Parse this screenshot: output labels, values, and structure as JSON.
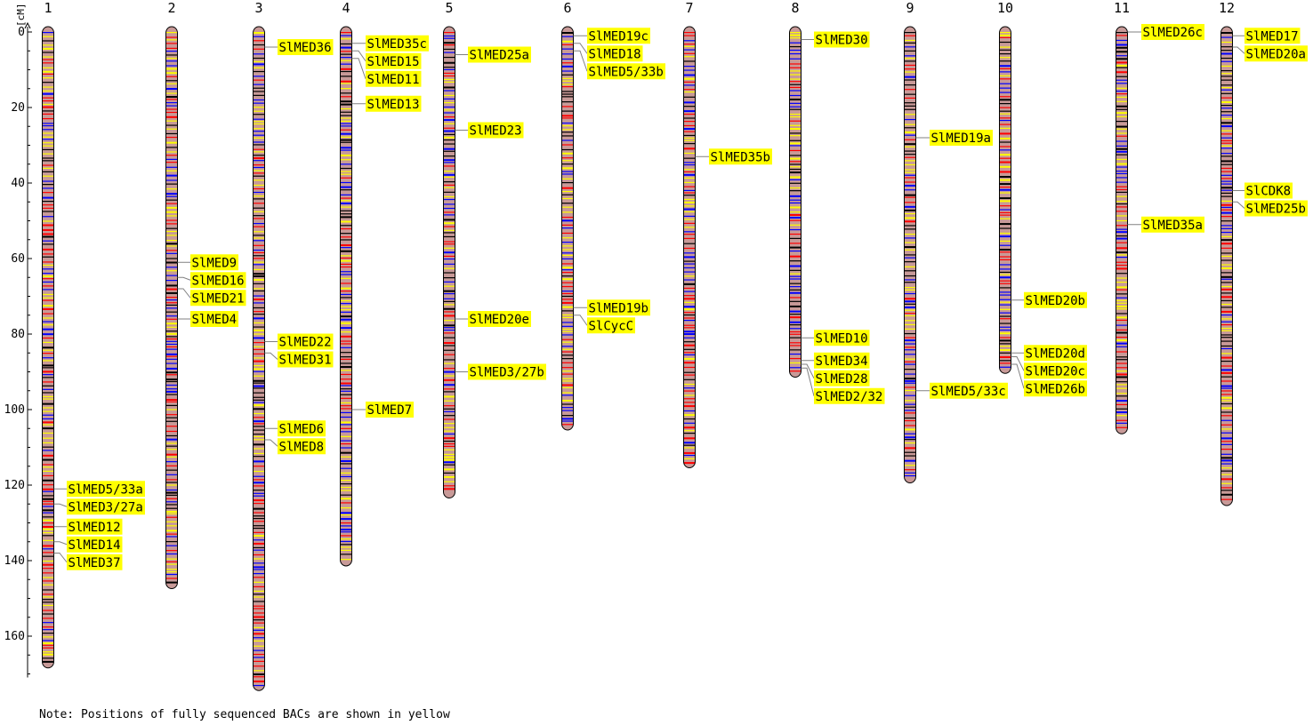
{
  "axis": {
    "unit": "[cM]",
    "ticks": [
      0,
      20,
      40,
      60,
      80,
      100,
      120,
      140,
      160
    ],
    "max": 170
  },
  "colors": {
    "chromosome_fill": "#c89a98",
    "label_bg": "#ffff00",
    "band_colors": [
      "#000000",
      "#ff0000",
      "#0000ff",
      "#ffff00"
    ]
  },
  "chromosomes": [
    {
      "name": "1",
      "length": 167,
      "genes": [
        {
          "name": "SlMED5/33a",
          "pos": 121
        },
        {
          "name": "SlMED3/27a",
          "pos": 125
        },
        {
          "name": "SlMED12",
          "pos": 131
        },
        {
          "name": "SlMED14",
          "pos": 135
        },
        {
          "name": "SlMED37",
          "pos": 138
        }
      ]
    },
    {
      "name": "2",
      "length": 146,
      "genes": [
        {
          "name": "SlMED9",
          "pos": 61
        },
        {
          "name": "SlMED16",
          "pos": 65
        },
        {
          "name": "SlMED21",
          "pos": 68
        },
        {
          "name": "SlMED4",
          "pos": 76
        }
      ]
    },
    {
      "name": "3",
      "length": 173,
      "genes": [
        {
          "name": "SlMED36",
          "pos": 4
        },
        {
          "name": "SlMED22",
          "pos": 82
        },
        {
          "name": "SlMED31",
          "pos": 85
        },
        {
          "name": "SlMED6",
          "pos": 105
        },
        {
          "name": "SlMED8",
          "pos": 108
        }
      ]
    },
    {
      "name": "4",
      "length": 140,
      "genes": [
        {
          "name": "SlMED35c",
          "pos": 3
        },
        {
          "name": "SlMED15",
          "pos": 5
        },
        {
          "name": "SlMED11",
          "pos": 7
        },
        {
          "name": "SlMED13",
          "pos": 19
        },
        {
          "name": "SlMED7",
          "pos": 100
        }
      ]
    },
    {
      "name": "5",
      "length": 122,
      "genes": [
        {
          "name": "SlMED25a",
          "pos": 6
        },
        {
          "name": "SlMED23",
          "pos": 26
        },
        {
          "name": "SlMED20e",
          "pos": 76
        },
        {
          "name": "SlMED3/27b",
          "pos": 90
        }
      ]
    },
    {
      "name": "6",
      "length": 104,
      "genes": [
        {
          "name": "SlMED19c",
          "pos": 1
        },
        {
          "name": "SlMED18",
          "pos": 3
        },
        {
          "name": "SlMED5/33b",
          "pos": 5
        },
        {
          "name": "SlMED19b",
          "pos": 73
        },
        {
          "name": "SlCycC",
          "pos": 75
        }
      ]
    },
    {
      "name": "7",
      "length": 114,
      "genes": [
        {
          "name": "SlMED35b",
          "pos": 33
        }
      ]
    },
    {
      "name": "8",
      "length": 90,
      "genes": [
        {
          "name": "SlMED30",
          "pos": 2
        },
        {
          "name": "SlMED10",
          "pos": 81
        },
        {
          "name": "SlMED34",
          "pos": 87
        },
        {
          "name": "SlMED28",
          "pos": 88
        },
        {
          "name": "SlMED2/32",
          "pos": 89
        }
      ]
    },
    {
      "name": "9",
      "length": 118,
      "genes": [
        {
          "name": "SlMED19a",
          "pos": 28
        },
        {
          "name": "SlMED5/33c",
          "pos": 95
        }
      ]
    },
    {
      "name": "10",
      "length": 89,
      "genes": [
        {
          "name": "SlMED20b",
          "pos": 71
        },
        {
          "name": "SlMED20d",
          "pos": 85
        },
        {
          "name": "SlMED20c",
          "pos": 86
        },
        {
          "name": "SlMED26b",
          "pos": 88
        }
      ]
    },
    {
      "name": "11",
      "length": 105,
      "genes": [
        {
          "name": "SlMED26c",
          "pos": 0
        },
        {
          "name": "SlMED35a",
          "pos": 51
        }
      ]
    },
    {
      "name": "12",
      "length": 124,
      "genes": [
        {
          "name": "SlMED17",
          "pos": 1
        },
        {
          "name": "SlMED20a",
          "pos": 4
        },
        {
          "name": "SlCDK8",
          "pos": 42
        },
        {
          "name": "SlMED25b",
          "pos": 45
        }
      ]
    }
  ],
  "note": "Note: Positions of fully sequenced BACs are shown in yellow"
}
